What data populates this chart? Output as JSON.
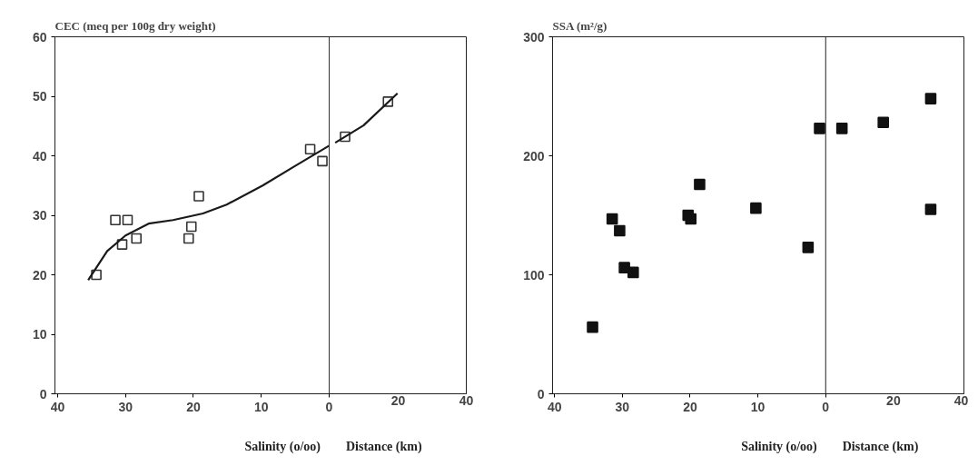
{
  "chart_data": [
    {
      "type": "scatter",
      "ylabel": "CEC (meq per 100g dry weight)",
      "xlabel": "Salinity (o/oo)",
      "x2label": "Distance (km)",
      "xlim": [
        40.4,
        -20.2
      ],
      "x2lim": [
        -80.8,
        40
      ],
      "ylim": [
        0,
        60
      ],
      "xticks": [
        40,
        30,
        20,
        10,
        0
      ],
      "x2ticks": [
        20,
        40
      ],
      "yticks": [
        0,
        10,
        20,
        30,
        40,
        50,
        60
      ],
      "grid": false,
      "ref_lines": [
        {
          "axis": "x",
          "value": 0,
          "color": "#333333"
        }
      ],
      "series": [
        {
          "marker": "square",
          "color": "#333333",
          "x": [
            34.3,
            31.5,
            29.7,
            30.5,
            28.4,
            20.7,
            20.3,
            19.2,
            2.8,
            1.0
          ],
          "values": [
            20.0,
            29.2,
            29.2,
            25.1,
            26.1,
            26.1,
            28.1,
            33.2,
            41.1,
            39.1
          ]
        },
        {
          "marker": "square",
          "color": "#333333",
          "axis": "x2",
          "x": [
            4.4,
            17
          ],
          "values": [
            43.2,
            49.1
          ]
        },
        {
          "type": "line",
          "marker": "none",
          "line_style": "solid",
          "color": "#1a1a1a",
          "x": [
            35.5,
            32.7,
            30,
            26.6,
            23,
            18.6,
            15.1,
            9.8,
            5,
            0
          ],
          "values": [
            19.1,
            24,
            26.6,
            28.6,
            29.2,
            30.3,
            31.8,
            35,
            38.3,
            41.7
          ]
        },
        {
          "type": "line",
          "marker": "none",
          "line_style": "solid",
          "color": "#1a1a1a",
          "axis": "x2",
          "x": [
            1.5,
            9.8,
            19.8
          ],
          "values": [
            42.2,
            45.1,
            50.5
          ]
        }
      ]
    },
    {
      "type": "scatter",
      "ylabel": "SSA (m²/g)",
      "xlabel": "Salinity (o/oo)",
      "x2label": "Distance (km)",
      "xlim": [
        40.3,
        -20.4
      ],
      "x2lim": [
        -80.6,
        40.8
      ],
      "ylim": [
        0,
        300
      ],
      "xticks": [
        40,
        30,
        20,
        10,
        0
      ],
      "x2ticks": [
        20,
        40
      ],
      "yticks": [
        0,
        100,
        200,
        300
      ],
      "grid": false,
      "ref_lines": [
        {
          "axis": "x",
          "value": 0,
          "color": "#222222"
        }
      ],
      "series": [
        {
          "marker": "square",
          "color": "#111111",
          "x": [
            34.4,
            31.5,
            30.4,
            29.7,
            28.4,
            20.3,
            19.9,
            18.6,
            10.3,
            2.6,
            0.9
          ],
          "values": [
            56,
            147,
            137,
            106,
            102,
            150,
            147,
            176,
            156,
            123,
            223
          ]
        },
        {
          "marker": "square",
          "color": "#111111",
          "axis": "x2",
          "x": [
            4.8,
            17,
            31,
            31
          ],
          "values": [
            223,
            228,
            248,
            155
          ]
        }
      ]
    }
  ]
}
